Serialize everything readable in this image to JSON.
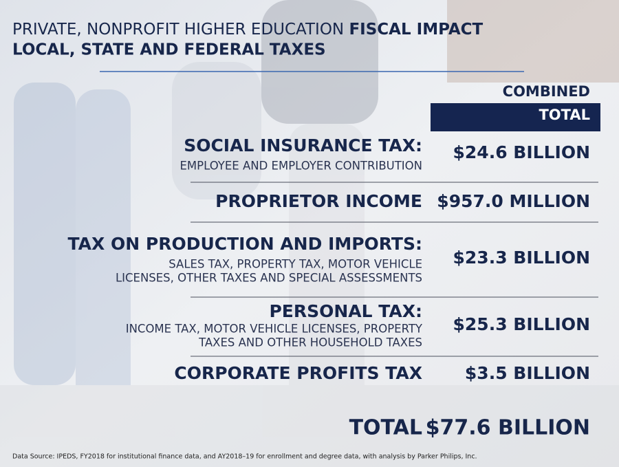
{
  "header": {
    "title_regular": "PRIVATE, NONPROFIT HIGHER EDUCATION",
    "title_bold": "FISCAL IMPACT",
    "subtitle": "LOCAL, STATE AND FEDERAL TAXES"
  },
  "column_header": {
    "line1": "COMBINED",
    "line2": "TOTAL"
  },
  "rows": [
    {
      "label": "SOCIAL INSURANCE TAX:",
      "sublabel": [
        "EMPLOYEE AND EMPLOYER CONTRIBUTION"
      ],
      "value": "$24.6 BILLION"
    },
    {
      "label": "PROPRIETOR INCOME",
      "sublabel": [],
      "value": "$957.0 MILLION"
    },
    {
      "label": "TAX ON PRODUCTION AND IMPORTS:",
      "sublabel": [
        "SALES TAX, PROPERTY TAX, MOTOR VEHICLE",
        "LICENSES, OTHER TAXES AND SPECIAL ASSESSMENTS"
      ],
      "value": "$23.3 BILLION"
    },
    {
      "label": "PERSONAL TAX:",
      "sublabel": [
        "INCOME TAX, MOTOR VEHICLE LICENSES, PROPERTY",
        "TAXES AND OTHER HOUSEHOLD TAXES"
      ],
      "value": "$25.3 BILLION"
    },
    {
      "label": "CORPORATE PROFITS TAX",
      "sublabel": [],
      "value": "$3.5 BILLION"
    }
  ],
  "total": {
    "label": "TOTAL",
    "value": "$77.6 BILLION"
  },
  "footnote": "Data Source: IPEDS, FY2018 for institutional finance data, and AY2018–19 for enrollment and degree data, with analysis by Parker Philips, Inc."
}
